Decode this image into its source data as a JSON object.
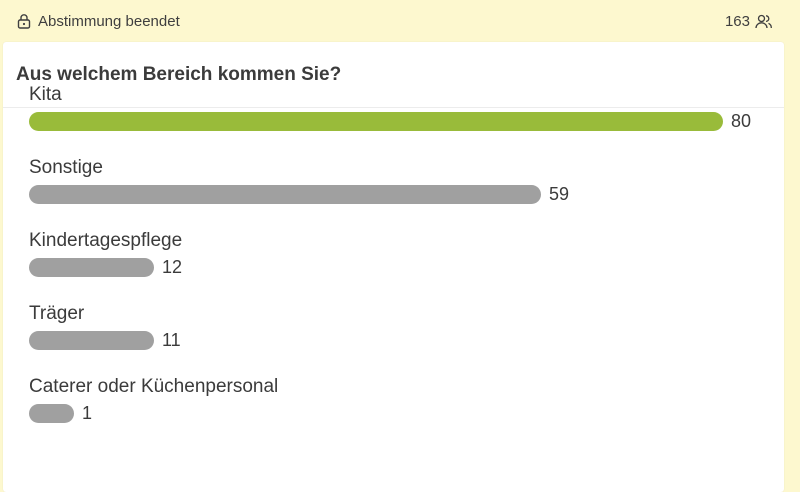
{
  "poll": {
    "status_text": "Abstimmung beendet",
    "total_votes": "163",
    "question": "Aus welchem Bereich kommen Sie?",
    "max_votes": 80,
    "options": [
      {
        "label": "Kita",
        "votes": 80,
        "winner": true
      },
      {
        "label": "Sonstige",
        "votes": 59,
        "winner": false
      },
      {
        "label": "Kindertagespflege",
        "votes": 12,
        "winner": false
      },
      {
        "label": "Träger",
        "votes": 11,
        "winner": false
      },
      {
        "label": "Caterer oder Küchenpersonal",
        "votes": 1,
        "winner": false
      }
    ]
  },
  "colors": {
    "background": "#fdf8cf",
    "winner_bar": "#99bb3a",
    "bar": "#a0a0a0",
    "text": "#3b3b3b"
  },
  "icons": {
    "status": "lock-icon",
    "votes": "people-icon"
  }
}
